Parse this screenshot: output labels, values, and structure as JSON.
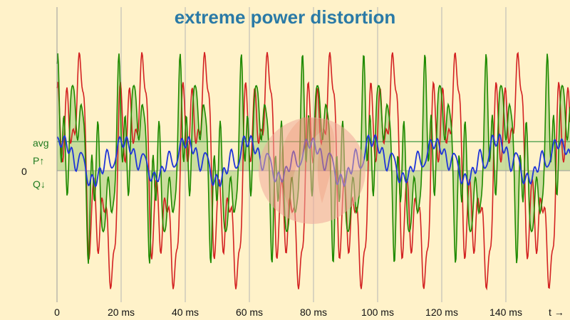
{
  "chart_data": {
    "type": "line",
    "title": "extreme power distortion",
    "xlabel": "t →",
    "x_unit": "ms",
    "xlim": [
      0,
      80
    ],
    "x_ticks": [
      {
        "value": 0,
        "label": "0"
      },
      {
        "value": 10,
        "label": "20 ms"
      },
      {
        "value": 20,
        "label": "40 ms"
      },
      {
        "value": 30,
        "label": "60 ms"
      },
      {
        "value": 40,
        "label": "80 ms"
      },
      {
        "value": 50,
        "label": "100 ms"
      },
      {
        "value": 60,
        "label": "120 ms"
      },
      {
        "value": 70,
        "label": "140 ms"
      }
    ],
    "y_labels": {
      "avg": "avg",
      "p": "P↑",
      "q": "Q↓",
      "zero": "0"
    },
    "ylim": [
      -1,
      1
    ],
    "avg_level": 0.24,
    "grid": "vertical",
    "series": [
      {
        "key": "red",
        "color": "#d32222",
        "harmonics": [
          [
            1,
            1.0,
            0
          ],
          [
            3,
            0.55,
            0.8
          ],
          [
            5,
            0.45,
            2.0
          ],
          [
            7,
            0.25,
            1.0
          ],
          [
            9,
            0.18,
            0.4
          ],
          [
            11,
            0.12,
            2.6
          ]
        ],
        "drift": 0.015
      },
      {
        "key": "green",
        "color": "#1f8a00",
        "fill": "#b9d58d",
        "harmonics": [
          [
            1,
            0.62,
            0.2
          ],
          [
            3,
            0.5,
            1.5
          ],
          [
            5,
            0.42,
            0.6
          ],
          [
            7,
            0.35,
            2.3
          ],
          [
            9,
            0.28,
            1.1
          ],
          [
            11,
            0.2,
            0.2
          ]
        ],
        "drift": 0.03,
        "offset": 0.18
      },
      {
        "key": "blue",
        "color": "#1f35d8",
        "harmonics": [
          [
            1,
            0.12,
            1.0
          ],
          [
            3,
            0.05,
            0.0
          ],
          [
            5,
            0.04,
            1.5
          ],
          [
            7,
            0.035,
            2.8
          ],
          [
            9,
            0.03,
            0.7
          ]
        ],
        "drift": 0.02,
        "offset": 0.08,
        "modulation": 0.1
      }
    ]
  },
  "colors": {
    "background": "#fff2c9",
    "grid": "#b5b5b5",
    "avg_line": "#5fa85a",
    "overlay": "#f0a99b"
  }
}
